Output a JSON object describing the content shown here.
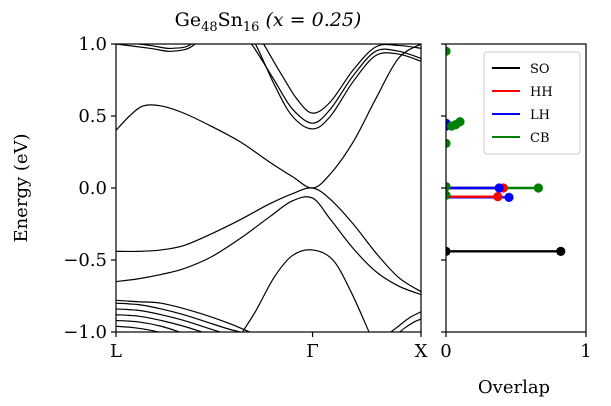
{
  "chart_data": [
    {
      "type": "line",
      "title_base": "Ge",
      "title_sub1": "48",
      "title_mid": "Sn",
      "title_sub2": "16",
      "title_tail": " (x = 0.25)",
      "ylabel": "Energy (eV)",
      "xlabel": "",
      "ylim": [
        -1.0,
        1.0
      ],
      "xlim": [
        0,
        1.35
      ],
      "y_ticks": [
        -1.0,
        -0.5,
        0.0,
        0.5,
        1.0
      ],
      "y_tick_labels": [
        "−1.0",
        "−0.5",
        "0.0",
        "0.5",
        "1.0"
      ],
      "x_ticks": [
        {
          "value": 0,
          "label": "L"
        },
        {
          "value": 0.87,
          "label": "Γ"
        },
        {
          "value": 1.35,
          "label": "X"
        }
      ],
      "line_color": "#000000",
      "bands": [
        {
          "x": [
            0,
            0.1,
            0.2,
            0.3,
            0.42,
            0.55,
            0.68,
            0.78,
            0.87,
            0.95,
            1.05,
            1.15,
            1.25,
            1.35
          ],
          "y": [
            -0.65,
            -0.63,
            -0.6,
            -0.56,
            -0.48,
            -0.35,
            -0.2,
            -0.09,
            -0.07,
            -0.22,
            -0.42,
            -0.58,
            -0.68,
            -0.74
          ]
        },
        {
          "x": [
            0,
            0.1,
            0.2,
            0.3,
            0.42,
            0.55,
            0.68,
            0.78,
            0.87,
            0.95,
            1.05,
            1.15,
            1.25,
            1.35
          ],
          "y": [
            -0.44,
            -0.44,
            -0.43,
            -0.4,
            -0.32,
            -0.22,
            -0.11,
            -0.04,
            0.0,
            -0.08,
            -0.25,
            -0.45,
            -0.62,
            -0.72
          ]
        },
        {
          "x": [
            0,
            0.06,
            0.12,
            0.2,
            0.3,
            0.42,
            0.55,
            0.68,
            0.78,
            0.87,
            0.95,
            1.05,
            1.15,
            1.25,
            1.35
          ],
          "y": [
            0.4,
            0.5,
            0.57,
            0.57,
            0.52,
            0.43,
            0.32,
            0.18,
            0.08,
            0.0,
            0.1,
            0.32,
            0.62,
            0.9,
            1.0
          ]
        },
        {
          "x": [
            0,
            0.15,
            0.25,
            0.35,
            0.48,
            0.6,
            0.7,
            0.78,
            0.87,
            0.95,
            1.05,
            1.15,
            1.25,
            1.35
          ],
          "y": [
            1.0,
            0.97,
            0.95,
            1.0,
            1.25,
            1.0,
            0.75,
            0.55,
            0.45,
            0.55,
            0.78,
            0.95,
            0.95,
            0.9
          ]
        },
        {
          "x": [
            0,
            0.15,
            0.25,
            0.35,
            0.48,
            0.6,
            0.7,
            0.78,
            0.87,
            0.95,
            1.05,
            1.15,
            1.25,
            1.35
          ],
          "y": [
            1.02,
            0.99,
            0.97,
            1.02,
            1.3,
            1.05,
            0.72,
            0.5,
            0.41,
            0.5,
            0.74,
            0.92,
            0.93,
            0.88
          ]
        },
        {
          "x": [
            0,
            0.15,
            0.3,
            0.45,
            0.6,
            0.72,
            0.8,
            0.87,
            0.95,
            1.05,
            1.15,
            1.25,
            1.35
          ],
          "y": [
            1.05,
            1.04,
            1.1,
            1.3,
            1.12,
            0.82,
            0.62,
            0.52,
            0.6,
            0.82,
            0.98,
            0.99,
            0.97
          ]
        },
        {
          "x": [
            0.56,
            0.62,
            0.7,
            0.78,
            0.87,
            0.96,
            1.04,
            1.12
          ],
          "y": [
            -1.0,
            -0.85,
            -0.62,
            -0.47,
            -0.43,
            -0.5,
            -0.72,
            -1.0
          ]
        },
        {
          "x": [
            0,
            0.1,
            0.2,
            0.3,
            0.4,
            0.5,
            0.6
          ],
          "y": [
            -0.8,
            -0.81,
            -0.84,
            -0.88,
            -0.93,
            -0.98,
            -1.02
          ]
        },
        {
          "x": [
            0,
            0.1,
            0.2,
            0.3,
            0.4,
            0.5
          ],
          "y": [
            -0.84,
            -0.85,
            -0.88,
            -0.92,
            -0.97,
            -1.02
          ]
        },
        {
          "x": [
            0,
            0.1,
            0.2,
            0.3,
            0.4
          ],
          "y": [
            -0.88,
            -0.89,
            -0.92,
            -0.96,
            -1.01
          ]
        },
        {
          "x": [
            0,
            0.1,
            0.2,
            0.3
          ],
          "y": [
            -0.92,
            -0.93,
            -0.96,
            -1.01
          ]
        },
        {
          "x": [
            0,
            0.08,
            0.16,
            0.24
          ],
          "y": [
            -0.96,
            -0.97,
            -0.99,
            -1.02
          ]
        },
        {
          "x": [
            0,
            0.1,
            0.2,
            0.35,
            0.5,
            0.62
          ],
          "y": [
            -0.78,
            -0.79,
            -0.8,
            -0.86,
            -0.94,
            -1.02
          ]
        },
        {
          "x": [
            1.2,
            1.25,
            1.3,
            1.35
          ],
          "y": [
            -1.02,
            -0.96,
            -0.9,
            -0.86
          ]
        },
        {
          "x": [
            1.24,
            1.28,
            1.32,
            1.35
          ],
          "y": [
            -1.02,
            -0.97,
            -0.93,
            -0.91
          ]
        }
      ]
    },
    {
      "type": "scatter",
      "xlabel": "Overlap",
      "ylabel": "",
      "ylim": [
        -1.0,
        1.0
      ],
      "xlim": [
        0,
        1.0
      ],
      "x_ticks": [
        0,
        1
      ],
      "x_tick_labels": [
        "0",
        "1"
      ],
      "legend_position": "top-right",
      "series": [
        {
          "name": "SO",
          "color": "#000000",
          "points": [
            {
              "x": 0.82,
              "y": -0.44
            },
            {
              "x": 0.0,
              "y": -0.44
            }
          ]
        },
        {
          "name": "HH",
          "color": "#ff0000",
          "points": [
            {
              "x": 0.41,
              "y": 0.0
            },
            {
              "x": 0.37,
              "y": -0.06
            }
          ]
        },
        {
          "name": "LH",
          "color": "#0000ff",
          "points": [
            {
              "x": 0.38,
              "y": 0.0
            },
            {
              "x": 0.45,
              "y": -0.065
            },
            {
              "x": 0.0,
              "y": 0.43
            },
            {
              "x": 0.0,
              "y": 0.45
            }
          ]
        },
        {
          "name": "CB",
          "color": "#008000",
          "points": [
            {
              "x": 0.66,
              "y": 0.0
            },
            {
              "x": 0.0,
              "y": 0.95
            },
            {
              "x": 0.04,
              "y": 0.43
            },
            {
              "x": 0.07,
              "y": 0.44
            },
            {
              "x": 0.1,
              "y": 0.46
            },
            {
              "x": 0.0,
              "y": 0.31
            },
            {
              "x": 0.0,
              "y": -0.05
            },
            {
              "x": 0.0,
              "y": 0.01
            }
          ]
        }
      ],
      "stems": [
        {
          "color": "#000000",
          "x": 0.82,
          "y": -0.44
        },
        {
          "color": "#0000ff",
          "x": 0.45,
          "y": -0.065
        },
        {
          "color": "#ff0000",
          "x": 0.37,
          "y": -0.06
        },
        {
          "color": "#008000",
          "x": 0.66,
          "y": 0.0
        },
        {
          "color": "#ff0000",
          "x": 0.41,
          "y": 0.0
        },
        {
          "color": "#0000ff",
          "x": 0.38,
          "y": 0.0
        }
      ]
    }
  ]
}
